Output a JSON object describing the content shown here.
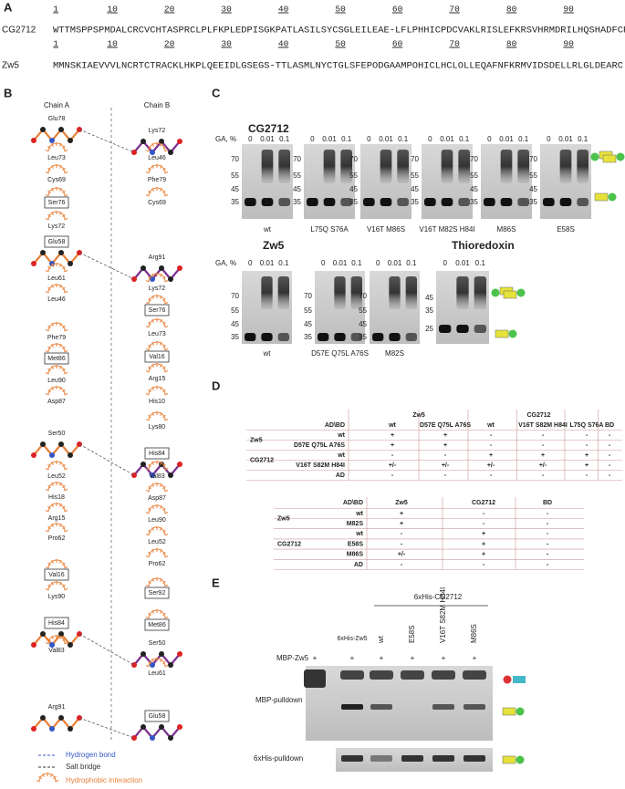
{
  "A": {
    "label": "A",
    "ruler": [
      1,
      10,
      20,
      30,
      40,
      50,
      60,
      70,
      80,
      90
    ],
    "rows": [
      {
        "name": "CG2712",
        "sequence": "WTTMSPPSPMDALCRCVCHTASPRCLPLFKPLEDPISGKPATLASILSYCSGLEILEAE-LFLPHHICPDCVAKLRISLEFKRSVHRMDRILHQSHADFCR"
      },
      {
        "name": "Zw5",
        "sequence": "MMNSKIAEVVVLNCRTCTRACKLHKPLQEEIDLGSEGS-TTLASMLNYCTGLSFEPODGAAMPOHICLHCLOLLEQAFNFKRMVIDSDELLRLGLDEARC"
      }
    ]
  },
  "B": {
    "label": "B",
    "chains": [
      "Chain A",
      "Chain B"
    ],
    "chain_a": [
      {
        "label": "Glu78",
        "stick": true
      },
      {
        "label": "Leu73"
      },
      {
        "label": "Cys69"
      },
      {
        "label": "Ser76",
        "boxed": true
      },
      {
        "label": "Lys72"
      },
      {
        "label": "Glu58",
        "boxed": true,
        "stick": true
      },
      {
        "label": "Leu61"
      },
      {
        "label": "Leu46"
      },
      {
        "label": "Phe79"
      },
      {
        "label": "Met86",
        "boxed": true
      },
      {
        "label": "Leu90"
      },
      {
        "label": "Asp87"
      },
      {
        "label": "Ser50",
        "stick": true
      },
      {
        "label": "Leu52"
      },
      {
        "label": "His18"
      },
      {
        "label": "Arg15"
      },
      {
        "label": "Pro62"
      },
      {
        "label": "Val16",
        "boxed": true
      },
      {
        "label": "Lys90"
      },
      {
        "label": "His84",
        "boxed": true,
        "stick": true
      },
      {
        "label": "Val83"
      },
      {
        "label": "Arg91",
        "stick": true
      }
    ],
    "chain_b": [
      {
        "label": "Lys72",
        "stick": true
      },
      {
        "label": "Leu46"
      },
      {
        "label": "Phe79"
      },
      {
        "label": "Cys69"
      },
      {
        "label": "Arg91",
        "stick": true
      },
      {
        "label": "Lys72"
      },
      {
        "label": "Ser76",
        "boxed": true
      },
      {
        "label": "Leu73"
      },
      {
        "label": "Val16",
        "boxed": true
      },
      {
        "label": "Arg15"
      },
      {
        "label": "His10"
      },
      {
        "label": "Lys80"
      },
      {
        "label": "His84",
        "boxed": true,
        "stick": true
      },
      {
        "label": "Val83"
      },
      {
        "label": "Asp87"
      },
      {
        "label": "Leu90"
      },
      {
        "label": "Leu52"
      },
      {
        "label": "Pro62"
      },
      {
        "label": "Ser92",
        "boxed": true
      },
      {
        "label": "Met86",
        "boxed": true
      },
      {
        "label": "Ser50",
        "stick": true
      },
      {
        "label": "Leu61"
      },
      {
        "label": "Glu58",
        "boxed": true,
        "stick": true
      }
    ],
    "legend": [
      "Hydrogen bond",
      "Salt bridge",
      "Hydrophobic interaction"
    ]
  },
  "C": {
    "label": "C",
    "ga_label": "GA, %",
    "concentrations": [
      "0",
      "0.01",
      "0.1"
    ],
    "groups": [
      {
        "title": "CG2712",
        "gels": [
          {
            "lane": "wt",
            "markers": [
              70,
              55,
              45,
              35
            ]
          },
          {
            "lane": "L75Q S76A",
            "markers": [
              70,
              55,
              45,
              35
            ]
          },
          {
            "lane": "V16T M86S",
            "markers": [
              70,
              55,
              45,
              35
            ]
          },
          {
            "lane": "V16T M82S H84I",
            "markers": [
              70,
              55,
              45,
              35
            ]
          },
          {
            "lane": "M86S",
            "markers": [
              70,
              55,
              45,
              35
            ]
          },
          {
            "lane": "E58S",
            "markers": [
              70,
              55,
              45,
              35
            ]
          }
        ]
      },
      {
        "title": "Zw5",
        "gels": [
          {
            "lane": "wt",
            "markers": [
              70,
              55,
              45,
              35
            ]
          },
          {
            "lane": "D57E Q75L A76S",
            "markers": [
              70,
              55,
              45,
              35
            ]
          },
          {
            "lane": "M82S",
            "markers": [
              70,
              55,
              45,
              35
            ]
          }
        ]
      },
      {
        "title": "Thioredoxin",
        "gels": [
          {
            "markers": [
              45,
              35,
              25
            ]
          }
        ]
      }
    ]
  },
  "D": {
    "label": "D",
    "table1": {
      "corner": "AD\\BD",
      "groups": [
        {
          "name": "Zw5",
          "cols": [
            "wt",
            "D57E Q75L A76S"
          ]
        },
        {
          "name": "CG2712",
          "cols": [
            "wt",
            "V16T S82M H84I",
            "L75Q S76A"
          ]
        }
      ],
      "last": "BD",
      "row_groups": [
        {
          "name": "Zw5",
          "rows": [
            {
              "name": "wt",
              "cells": [
                "+",
                "+",
                "-",
                "-",
                "-",
                "-"
              ]
            },
            {
              "name": "D57E Q75L A76S",
              "cells": [
                "+",
                "+",
                "-",
                "-",
                "-",
                "-"
              ]
            }
          ]
        },
        {
          "name": "CG2712",
          "rows": [
            {
              "name": "wt",
              "cells": [
                "-",
                "-",
                "+",
                "+",
                "+",
                "-"
              ]
            },
            {
              "name": "V16T S82M H84I",
              "cells": [
                "+/-",
                "+/-",
                "+/-",
                "+/-",
                "+",
                "-"
              ]
            }
          ]
        },
        {
          "rows": [
            {
              "name": "AD",
              "cells": [
                "-",
                "-",
                "-",
                "-",
                "-",
                "-"
              ]
            }
          ]
        }
      ]
    },
    "table2": {
      "corner": "AD\\BD",
      "cols": [
        "Zw5",
        "CG2712",
        "BD"
      ],
      "row_groups": [
        {
          "name": "Zw5",
          "rows": [
            {
              "name": "wt",
              "cells": [
                "+",
                "-",
                "-"
              ]
            },
            {
              "name": "M82S",
              "cells": [
                "+",
                "-",
                "-"
              ]
            }
          ]
        },
        {
          "name": "CG2712",
          "rows": [
            {
              "name": "wt",
              "cells": [
                "-",
                "+",
                "-"
              ]
            },
            {
              "name": "E58S",
              "cells": [
                "-",
                "+",
                "-"
              ]
            },
            {
              "name": "M86S",
              "cells": [
                "+/-",
                "+",
                "-"
              ]
            }
          ]
        },
        {
          "rows": [
            {
              "name": "AD",
              "cells": [
                "-",
                "-",
                "-"
              ]
            }
          ]
        }
      ]
    }
  },
  "E": {
    "label": "E",
    "header": "6xHis-CG2712",
    "lanes": [
      "6xHis-Zw5",
      "wt",
      "E58S",
      "V16T S82M H84I",
      "M86S"
    ],
    "row_label": "MBP-Zw5",
    "plus": [
      "+",
      "+",
      "+",
      "+",
      "+",
      "+"
    ],
    "pulldowns": [
      "MBP-pulldown",
      "6xHis-pulldown"
    ]
  }
}
